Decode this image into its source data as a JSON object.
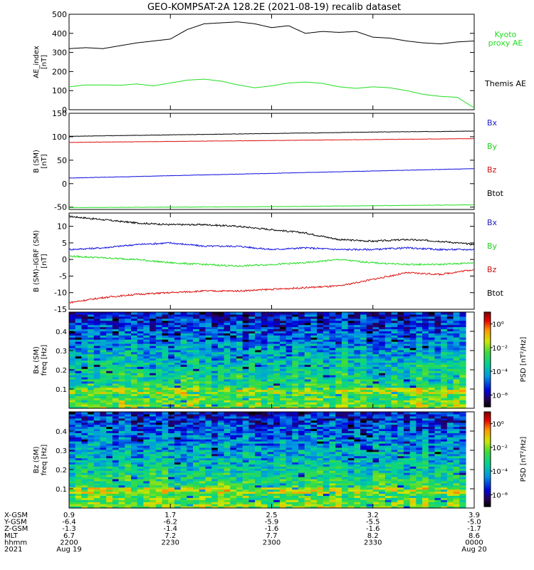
{
  "title": "GEO-KOMPSAT-2A 128.2E (2021-08-19) recalib dataset",
  "colors": {
    "black": "#000000",
    "green": "#22dd22",
    "blue": "#1010e0",
    "red": "#dd1010",
    "legend_bx": "#2020c0",
    "legend_by": "#22cc22",
    "legend_bz": "#cc1010",
    "legend_btot": "#000000"
  },
  "chart_data": [
    {
      "type": "line",
      "panel": "ae",
      "ylabel_lines": [
        "AE_index",
        "[nT]"
      ],
      "ylim": [
        0,
        500
      ],
      "yticks": [
        0,
        100,
        200,
        300,
        400,
        500
      ],
      "xlim": [
        0,
        120
      ],
      "series": [
        {
          "name": "Kyoto proxy AE",
          "name_lines": [
            "Kyoto",
            "proxy AE"
          ],
          "color": "#22dd22",
          "x": [
            0,
            5,
            10,
            15,
            20,
            25,
            30,
            35,
            40,
            45,
            50,
            55,
            60,
            65,
            70,
            75,
            80,
            85,
            90,
            95,
            100,
            105,
            110,
            115,
            120
          ],
          "values": [
            120,
            130,
            130,
            128,
            135,
            125,
            140,
            155,
            160,
            150,
            130,
            115,
            125,
            140,
            145,
            138,
            120,
            112,
            120,
            115,
            100,
            80,
            70,
            65,
            10
          ]
        },
        {
          "name": "Themis AE",
          "name_lines": [
            "Themis AE"
          ],
          "color": "#000000",
          "x": [
            0,
            5,
            10,
            15,
            20,
            25,
            30,
            35,
            40,
            45,
            50,
            55,
            60,
            65,
            70,
            75,
            80,
            85,
            90,
            95,
            100,
            105,
            110,
            115,
            120
          ],
          "values": [
            320,
            325,
            320,
            335,
            350,
            360,
            370,
            420,
            450,
            455,
            460,
            450,
            430,
            440,
            400,
            410,
            405,
            410,
            380,
            375,
            360,
            350,
            345,
            355,
            360
          ]
        }
      ]
    },
    {
      "type": "line",
      "panel": "b_sm",
      "ylabel_lines": [
        "B (SM)",
        "[nT]"
      ],
      "ylim": [
        -55,
        150
      ],
      "yticks": [
        -50,
        0,
        50,
        100,
        150
      ],
      "xlim": [
        0,
        120
      ],
      "legend": [
        "Bx",
        "By",
        "Bz",
        "Btot"
      ],
      "series": [
        {
          "name": "Btot",
          "color": "#000000",
          "x": [
            0,
            30,
            60,
            90,
            120
          ],
          "values": [
            101,
            104,
            107,
            110,
            112
          ]
        },
        {
          "name": "Bz",
          "color": "#dd1010",
          "x": [
            0,
            30,
            60,
            90,
            120
          ],
          "values": [
            88,
            90,
            92,
            94,
            96
          ]
        },
        {
          "name": "Bx",
          "color": "#1010e0",
          "x": [
            0,
            30,
            60,
            90,
            120
          ],
          "values": [
            12,
            17,
            22,
            27,
            32
          ]
        },
        {
          "name": "By",
          "color": "#22dd22",
          "x": [
            0,
            30,
            60,
            90,
            120
          ],
          "values": [
            -51,
            -50,
            -49,
            -47,
            -45
          ]
        }
      ]
    },
    {
      "type": "line",
      "panel": "b_minus_igrf",
      "ylabel_lines": [
        "B (SM)–IGRF (SM)",
        "[nT]"
      ],
      "ylim": [
        -15,
        14
      ],
      "yticks": [
        -15,
        -10,
        -5,
        0,
        5,
        10
      ],
      "xlim": [
        0,
        120
      ],
      "legend": [
        "Bx",
        "By",
        "Bz",
        "Btot"
      ],
      "series": [
        {
          "name": "Btot",
          "color": "#000000",
          "x": [
            0,
            10,
            20,
            30,
            40,
            50,
            60,
            70,
            80,
            90,
            100,
            110,
            120
          ],
          "values": [
            13,
            12,
            11,
            10.5,
            10.5,
            10,
            9,
            8,
            6,
            5.5,
            6,
            5.5,
            4.5
          ]
        },
        {
          "name": "Bx",
          "color": "#1010e0",
          "x": [
            0,
            10,
            20,
            30,
            40,
            50,
            60,
            70,
            80,
            90,
            100,
            110,
            120
          ],
          "values": [
            3,
            3.5,
            4.5,
            5,
            4,
            4,
            3,
            3.5,
            3,
            3,
            3.5,
            3,
            3
          ]
        },
        {
          "name": "By",
          "color": "#22dd22",
          "x": [
            0,
            10,
            20,
            30,
            40,
            50,
            60,
            70,
            80,
            90,
            100,
            110,
            120
          ],
          "values": [
            1,
            0.5,
            0,
            -1,
            -1.5,
            -2,
            -1.5,
            -1,
            0,
            -1,
            -1.5,
            -1.5,
            -1
          ]
        },
        {
          "name": "Bz",
          "color": "#dd1010",
          "x": [
            0,
            10,
            20,
            30,
            40,
            50,
            60,
            70,
            80,
            90,
            100,
            110,
            120
          ],
          "values": [
            -13,
            -11.5,
            -10.5,
            -10,
            -9.5,
            -9.5,
            -9,
            -8.5,
            -8,
            -6,
            -4,
            -4.5,
            -3
          ]
        }
      ]
    },
    {
      "type": "heatmap",
      "panel": "bx_spectrogram",
      "ylabel_lines": [
        "Bx (SM)",
        "freq  [Hz]"
      ],
      "ylim": [
        0,
        0.5
      ],
      "yticks": [
        0.1,
        0.2,
        0.3,
        0.4
      ],
      "colorbar_label": "PSD [nT²/Hz]",
      "colorbar_ticks": [
        "10⁰",
        "10⁻²",
        "10⁻⁴",
        "10⁻⁶"
      ],
      "colorbar_exponents": [
        0,
        -2,
        -4,
        -6
      ],
      "colorbar_range": [
        -7,
        1
      ]
    },
    {
      "type": "heatmap",
      "panel": "bz_spectrogram",
      "ylabel_lines": [
        "Bz (SM)",
        "freq  [Hz]"
      ],
      "ylim": [
        0,
        0.5
      ],
      "yticks": [
        0.1,
        0.2,
        0.3,
        0.4
      ],
      "colorbar_label": "PSD [nT²/Hz]",
      "colorbar_ticks": [
        "10⁰",
        "10⁻²",
        "10⁻⁴",
        "10⁻⁶"
      ],
      "colorbar_exponents": [
        0,
        -2,
        -4,
        -6
      ],
      "colorbar_range": [
        -7,
        1
      ]
    }
  ],
  "x_axis": {
    "row_labels": [
      "X-GSM",
      "Y-GSM",
      "Z-GSM",
      "MLT",
      "hhmm",
      "2021"
    ],
    "columns": [
      {
        "x": 0,
        "values": [
          "0.9",
          "-6.4",
          "-1.3",
          "6.7",
          "2200",
          "Aug 19"
        ]
      },
      {
        "x": 30,
        "values": [
          "1.7",
          "-6.2",
          "-1.4",
          "7.2",
          "2230",
          ""
        ]
      },
      {
        "x": 60,
        "values": [
          "2.5",
          "-5.9",
          "-1.6",
          "7.7",
          "2300",
          ""
        ]
      },
      {
        "x": 90,
        "values": [
          "3.2",
          "-5.5",
          "-1.6",
          "8.2",
          "2330",
          ""
        ]
      },
      {
        "x": 120,
        "values": [
          "3.9",
          "-5.0",
          "-1.7",
          "8.6",
          "0000",
          "Aug 20"
        ]
      }
    ],
    "xlim": [
      0,
      120
    ]
  }
}
